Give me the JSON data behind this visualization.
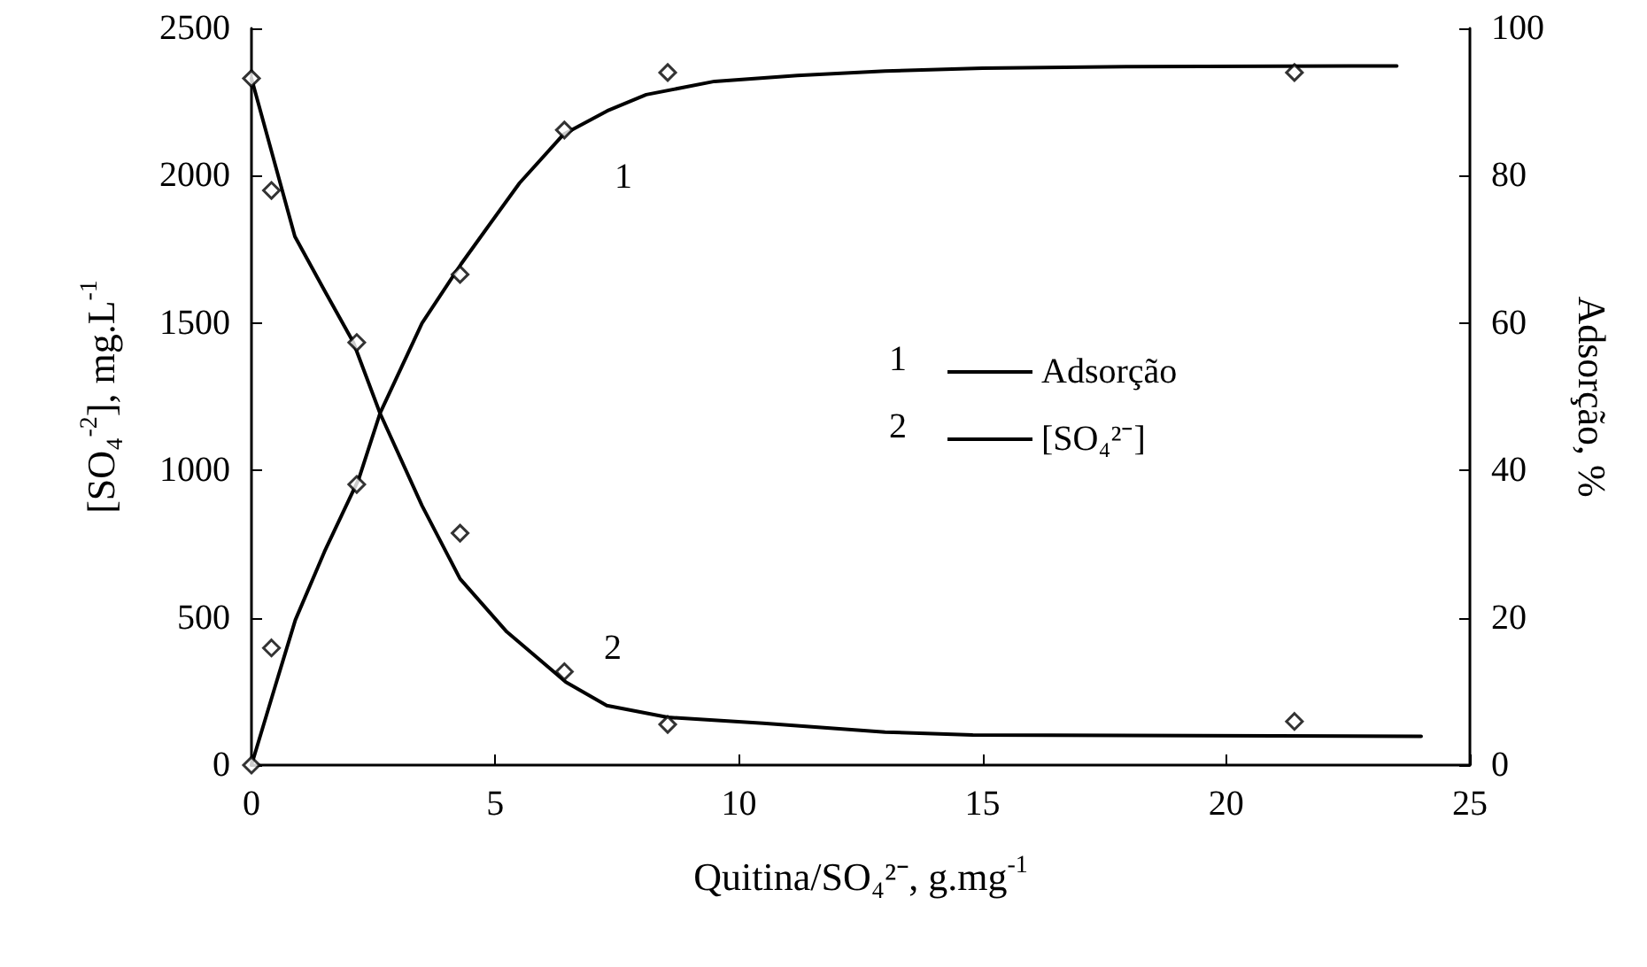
{
  "chart_data": {
    "type": "line",
    "xlabel": "Quitina/SO₄²⁻, g.mg$^{-1}$",
    "ylabel": "[SO₄$^{-2}$], mg.L$^{-1}$",
    "y2label": "Adsorção, %",
    "xlim": [
      0,
      25
    ],
    "xticks": [
      0,
      5,
      10,
      15,
      20,
      25
    ],
    "ylim": [
      0,
      2500
    ],
    "yticks": [
      0,
      500,
      1000,
      1500,
      2000,
      2500
    ],
    "y2lim": [
      0,
      100
    ],
    "y2ticks": [
      0,
      20,
      40,
      60,
      80,
      100
    ],
    "grid": false,
    "legend": "right",
    "annotations": [
      "1",
      "2"
    ],
    "series": [
      {
        "name": "Adsorção",
        "axis": "y2",
        "color": "#000000",
        "marker": "none",
        "x": [
          0,
          0.5,
          0.9,
          1.5,
          2.2,
          2.64,
          3.5,
          4.3,
          4.8,
          5.5,
          6.4,
          7.3,
          8.1,
          9.5,
          11.2,
          13,
          15,
          18,
          23.5
        ],
        "values": [
          0,
          11,
          19.7,
          29,
          38.8,
          47.8,
          60,
          68,
          72.6,
          79,
          85.6,
          88.8,
          91,
          92.8,
          93.6,
          94.2,
          94.6,
          94.8,
          94.9
        ]
      },
      {
        "name": "[SO₄²⁻]",
        "color": "#000000",
        "marker": "none",
        "x": [
          0,
          0.89,
          1.5,
          2.09,
          2.64,
          3.5,
          4.28,
          5.24,
          6.45,
          7.29,
          8.54,
          10.5,
          13,
          14.8,
          24
        ],
        "values": [
          2330,
          1794,
          1610,
          1435,
          1193,
          880,
          632,
          452,
          282,
          202,
          162,
          142,
          112,
          102,
          98
        ]
      },
      {
        "type": "scatter",
        "axis": "y2",
        "color": "#000000",
        "marker": "diamond",
        "x": [
          0,
          0.41,
          2.16,
          4.28,
          6.42,
          8.54,
          21.4
        ],
        "values": [
          0,
          15.9,
          38.1,
          66.6,
          86.2,
          94.0,
          94.0
        ]
      },
      {
        "type": "scatter",
        "color": "#000000",
        "marker": "diamond",
        "x": [
          0,
          0.41,
          2.16,
          4.28,
          6.42,
          8.54,
          21.4
        ],
        "values": [
          2330,
          1950,
          1434,
          787,
          317,
          138,
          148
        ]
      }
    ]
  }
}
